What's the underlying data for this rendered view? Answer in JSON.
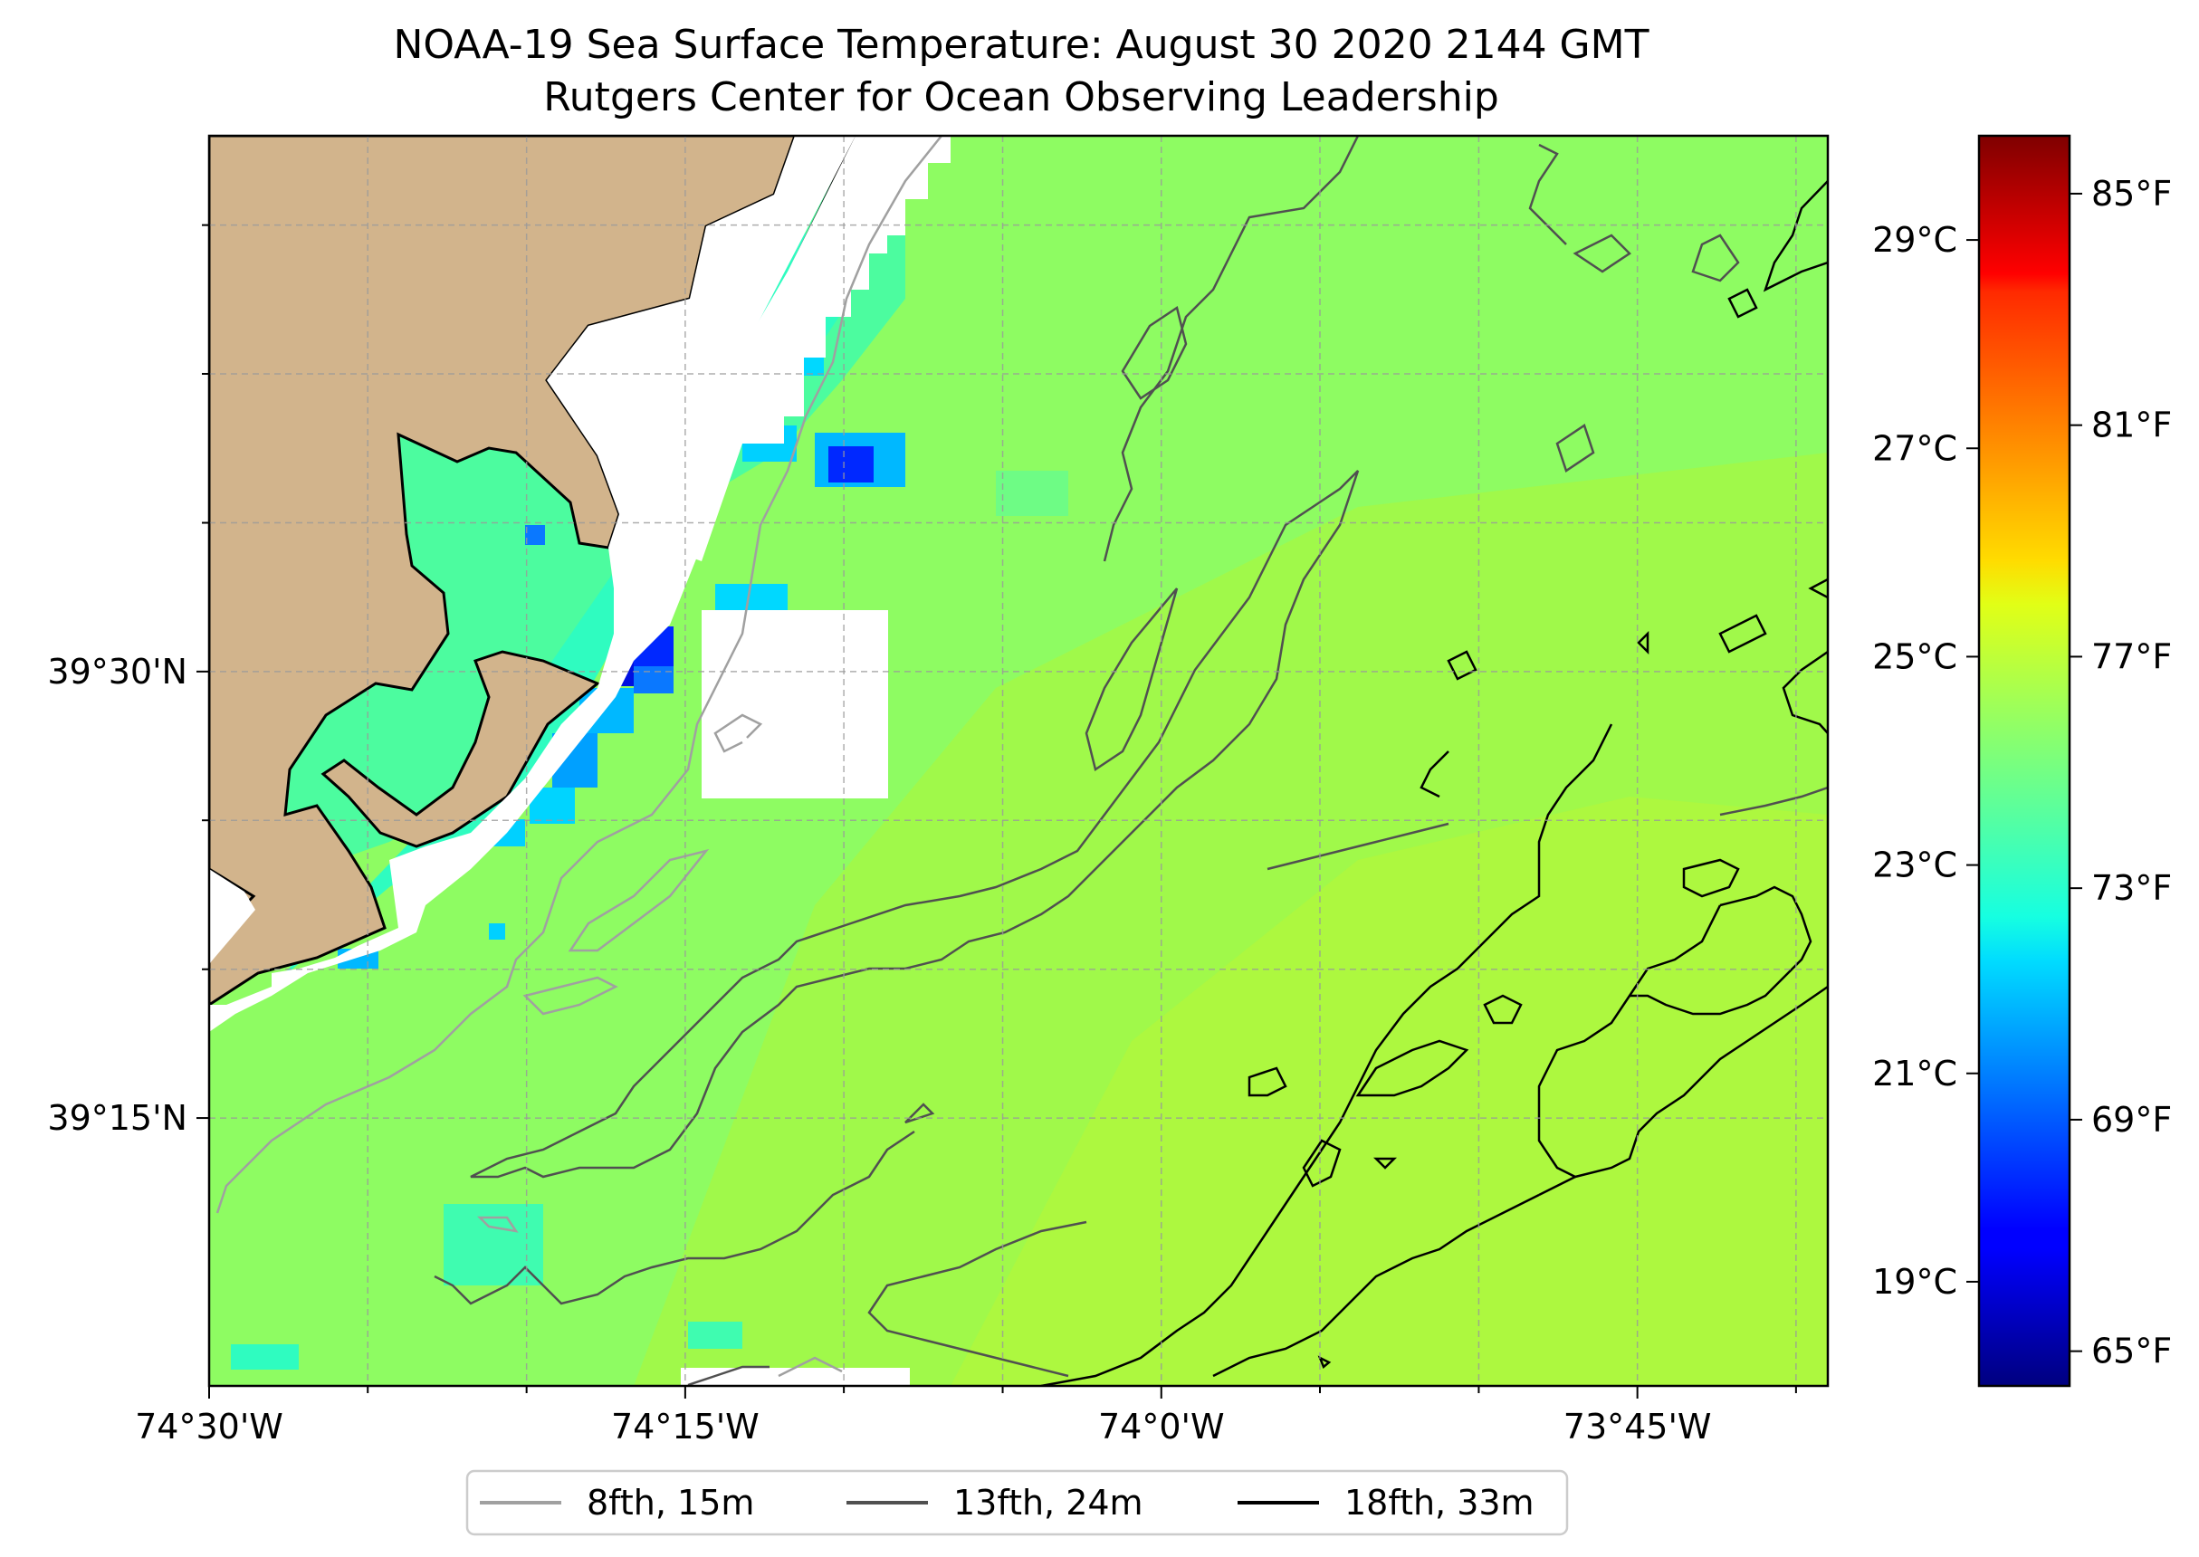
{
  "title": {
    "line1": "NOAA-19 Sea Surface Temperature: August 30 2020 2144 GMT",
    "line2": "Rutgers Center for Ocean Observing Leadership"
  },
  "map": {
    "extent": {
      "lon_min": -74.5,
      "lon_max": -73.65,
      "lat_min": 39.1,
      "lat_max": 39.8
    },
    "x_ticks": [
      {
        "lon": -74.5,
        "label": "74°30'W"
      },
      {
        "lon": -74.25,
        "label": "74°15'W"
      },
      {
        "lon": -74.0,
        "label": "74°0'W"
      },
      {
        "lon": -73.75,
        "label": "73°45'W"
      }
    ],
    "x_gridlines": [
      -74.5,
      -74.4167,
      -74.3333,
      -74.25,
      -74.1667,
      -74.0833,
      -74.0,
      -73.9167,
      -73.8333,
      -73.75,
      -73.6667
    ],
    "y_ticks": [
      {
        "lat": 39.5,
        "label": "39°30'N"
      },
      {
        "lat": 39.25,
        "label": "39°15'N"
      }
    ],
    "y_gridlines": [
      39.75,
      39.6667,
      39.5833,
      39.5,
      39.4167,
      39.3333,
      39.25
    ],
    "grid": true,
    "land_color": "#d2b48c",
    "nodata_color": "#ffffff",
    "contour_colors": {
      "8fth": "#a0a0a0",
      "13fth": "#505050",
      "18fth": "#000000"
    }
  },
  "colorbar": {
    "colormap": "jet",
    "range_f": [
      64.4,
      86.0
    ],
    "celsius_ticks": [
      {
        "value": 19,
        "label": "19°C"
      },
      {
        "value": 21,
        "label": "21°C"
      },
      {
        "value": 23,
        "label": "23°C"
      },
      {
        "value": 25,
        "label": "25°C"
      },
      {
        "value": 27,
        "label": "27°C"
      },
      {
        "value": 29,
        "label": "29°C"
      }
    ],
    "fahrenheit_ticks": [
      {
        "value": 65,
        "label": "65°F"
      },
      {
        "value": 69,
        "label": "69°F"
      },
      {
        "value": 73,
        "label": "73°F"
      },
      {
        "value": 77,
        "label": "77°F"
      },
      {
        "value": 81,
        "label": "81°F"
      },
      {
        "value": 85,
        "label": "85°F"
      }
    ]
  },
  "legend": {
    "placement": "bottom-center",
    "items": [
      {
        "label": "8fth, 15m",
        "color": "#a0a0a0"
      },
      {
        "label": "13fth, 24m",
        "color": "#505050"
      },
      {
        "label": "18fth, 33m",
        "color": "#000000"
      }
    ]
  }
}
